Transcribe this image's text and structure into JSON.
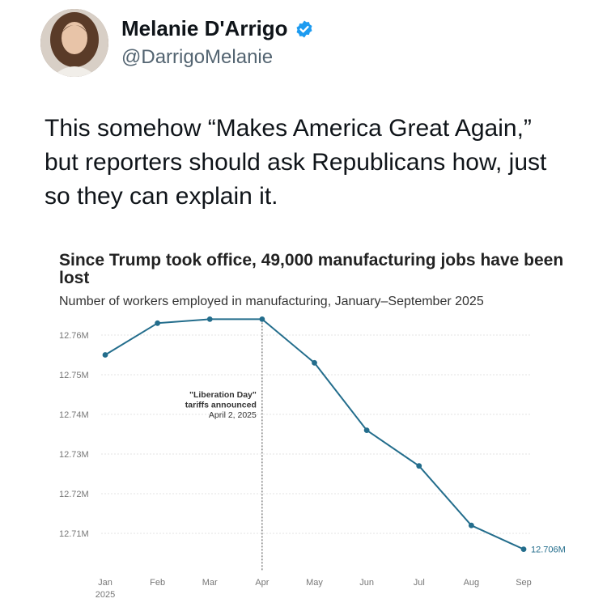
{
  "profile": {
    "display_name": "Melanie D'Arrigo",
    "handle": "@DarrigoMelanie",
    "verified": true,
    "verified_icon": "verified-badge-icon"
  },
  "tweet": {
    "text_lines": [
      "This somehow “Makes America Great Again,”",
      "but reporters should ask Republicans how, just",
      "so they can explain it."
    ]
  },
  "colors": {
    "line": "#236d8c",
    "verified": "#1d9bf0",
    "grid": "#e3e3e3",
    "axis_text": "#777777",
    "end_label": "#236d8c"
  },
  "chart_data": {
    "type": "line",
    "title": "Since Trump took office, 49,000 manufacturing jobs have been lost",
    "subtitle": "Number of workers employed in manufacturing, January–September 2025",
    "categories": [
      "Jan",
      "Feb",
      "Mar",
      "Apr",
      "May",
      "Jun",
      "Jul",
      "Aug",
      "Sep"
    ],
    "category_sublabels": [
      "2025",
      "",
      "",
      "",
      "",
      "",
      "",
      "",
      ""
    ],
    "values": [
      12.755,
      12.763,
      12.764,
      12.764,
      12.753,
      12.736,
      12.727,
      12.712,
      12.706
    ],
    "ylim": [
      12.705,
      12.765
    ],
    "y_ticks": [
      12.71,
      12.72,
      12.73,
      12.74,
      12.75,
      12.76
    ],
    "y_tick_labels": [
      "12.71M",
      "12.72M",
      "12.73M",
      "12.74M",
      "12.75M",
      "12.76M"
    ],
    "grid": true,
    "end_label": "12.706M",
    "annotation": {
      "category": "Apr",
      "lines": [
        "\"Liberation Day\"",
        "tariffs announced",
        "April 2, 2025"
      ]
    }
  }
}
